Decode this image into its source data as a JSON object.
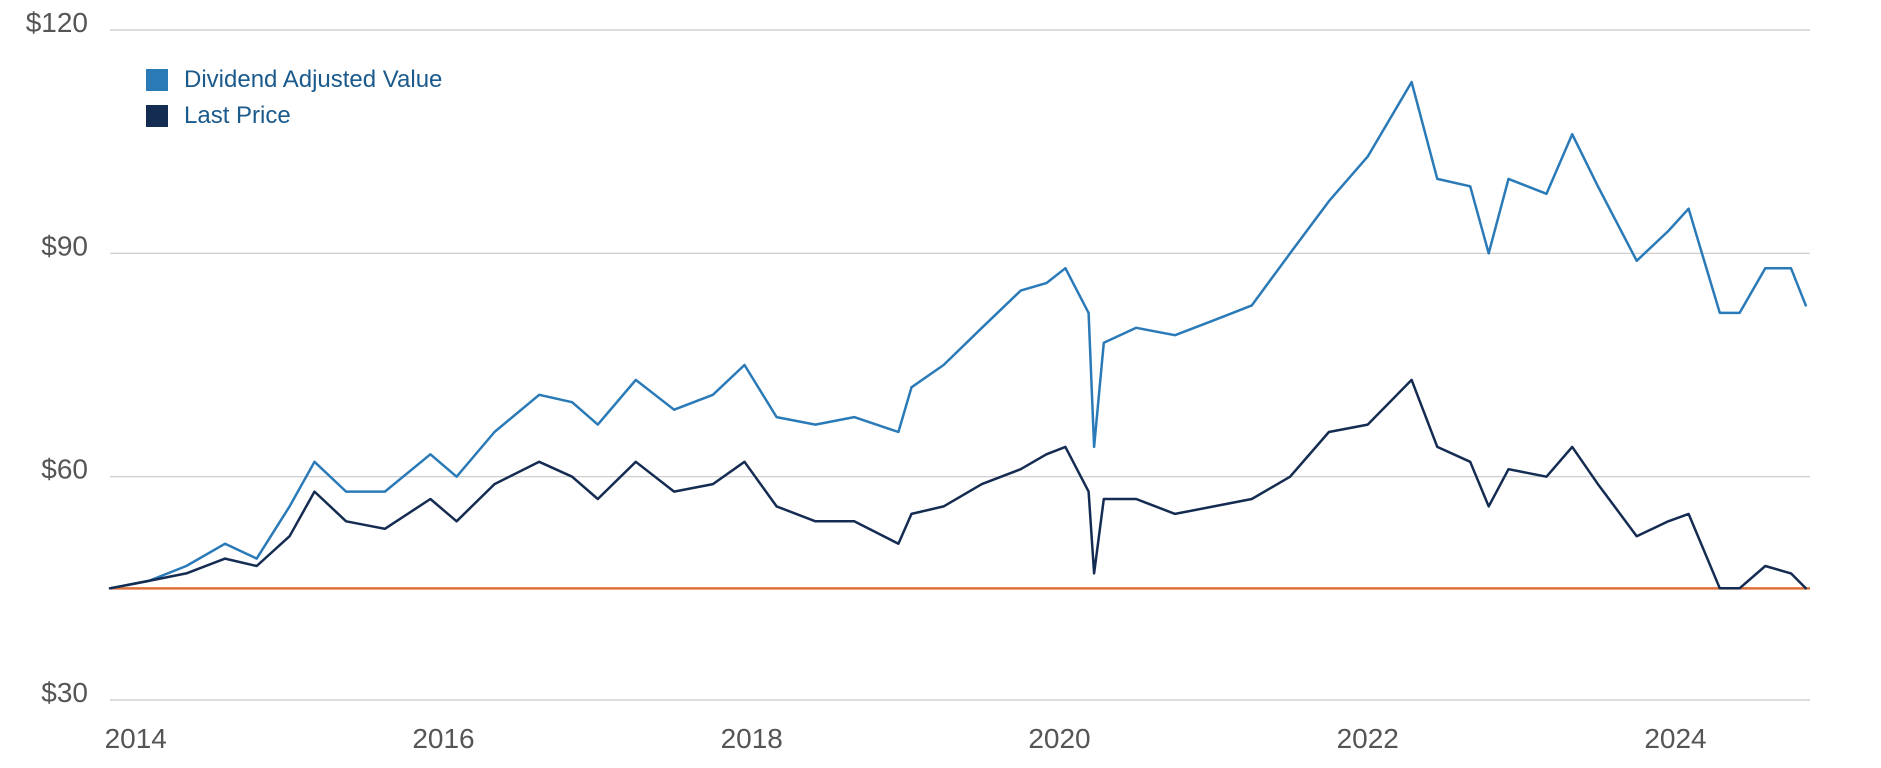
{
  "chart_data": {
    "type": "line",
    "title": "",
    "xlabel": "",
    "ylabel": "",
    "ylim": [
      30,
      120
    ],
    "xlim": [
      "2013-11-01",
      "2024-11-15"
    ],
    "y_ticks": [
      30,
      60,
      90,
      120
    ],
    "y_tick_labels": [
      "$30",
      "$60",
      "$90",
      "$120"
    ],
    "x_tick_values": [
      2014,
      2016,
      2018,
      2020,
      2022,
      2024
    ],
    "x_tick_labels": [
      "2014",
      "2016",
      "2018",
      "2020",
      "2022",
      "2024"
    ],
    "grid": true,
    "legend_position": "top-left",
    "legend": [
      "Dividend Adjusted Value",
      "Last Price"
    ],
    "colors": {
      "Dividend Adjusted Value": "#2a7ab8",
      "Last Price": "#152c52",
      "reference": "#e0703a"
    },
    "reference_line": {
      "value": 45
    },
    "series": [
      {
        "name": "Dividend Adjusted Value",
        "points": [
          [
            "2013-11-01",
            45
          ],
          [
            "2014-02-01",
            46
          ],
          [
            "2014-05-01",
            48
          ],
          [
            "2014-08-01",
            51
          ],
          [
            "2014-10-15",
            49
          ],
          [
            "2015-01-01",
            56
          ],
          [
            "2015-03-01",
            62
          ],
          [
            "2015-05-15",
            58
          ],
          [
            "2015-08-15",
            58
          ],
          [
            "2015-12-01",
            63
          ],
          [
            "2016-02-01",
            60
          ],
          [
            "2016-05-01",
            66
          ],
          [
            "2016-08-15",
            71
          ],
          [
            "2016-11-01",
            70
          ],
          [
            "2017-01-01",
            67
          ],
          [
            "2017-04-01",
            73
          ],
          [
            "2017-07-01",
            69
          ],
          [
            "2017-10-01",
            71
          ],
          [
            "2017-12-15",
            75
          ],
          [
            "2018-03-01",
            68
          ],
          [
            "2018-06-01",
            67
          ],
          [
            "2018-09-01",
            68
          ],
          [
            "2018-12-15",
            66
          ],
          [
            "2019-01-15",
            72
          ],
          [
            "2019-04-01",
            75
          ],
          [
            "2019-07-01",
            80
          ],
          [
            "2019-10-01",
            85
          ],
          [
            "2019-12-01",
            86
          ],
          [
            "2020-01-15",
            88
          ],
          [
            "2020-03-10",
            82
          ],
          [
            "2020-03-23",
            64
          ],
          [
            "2020-04-15",
            78
          ],
          [
            "2020-07-01",
            80
          ],
          [
            "2020-10-01",
            79
          ],
          [
            "2021-01-01",
            81
          ],
          [
            "2021-04-01",
            83
          ],
          [
            "2021-07-01",
            90
          ],
          [
            "2021-10-01",
            97
          ],
          [
            "2022-01-01",
            103
          ],
          [
            "2022-04-15",
            113
          ],
          [
            "2022-06-15",
            100
          ],
          [
            "2022-09-01",
            99
          ],
          [
            "2022-10-15",
            90
          ],
          [
            "2022-12-01",
            100
          ],
          [
            "2023-03-01",
            98
          ],
          [
            "2023-05-01",
            106
          ],
          [
            "2023-07-01",
            99
          ],
          [
            "2023-10-01",
            89
          ],
          [
            "2023-12-15",
            93
          ],
          [
            "2024-02-01",
            96
          ],
          [
            "2024-04-15",
            82
          ],
          [
            "2024-06-01",
            82
          ],
          [
            "2024-08-01",
            88
          ],
          [
            "2024-10-01",
            88
          ],
          [
            "2024-11-05",
            83
          ]
        ]
      },
      {
        "name": "Last Price",
        "points": [
          [
            "2013-11-01",
            45
          ],
          [
            "2014-02-01",
            46
          ],
          [
            "2014-05-01",
            47
          ],
          [
            "2014-08-01",
            49
          ],
          [
            "2014-10-15",
            48
          ],
          [
            "2015-01-01",
            52
          ],
          [
            "2015-03-01",
            58
          ],
          [
            "2015-05-15",
            54
          ],
          [
            "2015-08-15",
            53
          ],
          [
            "2015-12-01",
            57
          ],
          [
            "2016-02-01",
            54
          ],
          [
            "2016-05-01",
            59
          ],
          [
            "2016-08-15",
            62
          ],
          [
            "2016-11-01",
            60
          ],
          [
            "2017-01-01",
            57
          ],
          [
            "2017-04-01",
            62
          ],
          [
            "2017-07-01",
            58
          ],
          [
            "2017-10-01",
            59
          ],
          [
            "2017-12-15",
            62
          ],
          [
            "2018-03-01",
            56
          ],
          [
            "2018-06-01",
            54
          ],
          [
            "2018-09-01",
            54
          ],
          [
            "2018-12-15",
            51
          ],
          [
            "2019-01-15",
            55
          ],
          [
            "2019-04-01",
            56
          ],
          [
            "2019-07-01",
            59
          ],
          [
            "2019-10-01",
            61
          ],
          [
            "2019-12-01",
            63
          ],
          [
            "2020-01-15",
            64
          ],
          [
            "2020-03-10",
            58
          ],
          [
            "2020-03-23",
            47
          ],
          [
            "2020-04-15",
            57
          ],
          [
            "2020-07-01",
            57
          ],
          [
            "2020-10-01",
            55
          ],
          [
            "2021-01-01",
            56
          ],
          [
            "2021-04-01",
            57
          ],
          [
            "2021-07-01",
            60
          ],
          [
            "2021-10-01",
            66
          ],
          [
            "2022-01-01",
            67
          ],
          [
            "2022-04-15",
            73
          ],
          [
            "2022-06-15",
            64
          ],
          [
            "2022-09-01",
            62
          ],
          [
            "2022-10-15",
            56
          ],
          [
            "2022-12-01",
            61
          ],
          [
            "2023-03-01",
            60
          ],
          [
            "2023-05-01",
            64
          ],
          [
            "2023-07-01",
            59
          ],
          [
            "2023-10-01",
            52
          ],
          [
            "2023-12-15",
            54
          ],
          [
            "2024-02-01",
            55
          ],
          [
            "2024-04-15",
            45
          ],
          [
            "2024-06-01",
            45
          ],
          [
            "2024-08-01",
            48
          ],
          [
            "2024-10-01",
            47
          ],
          [
            "2024-11-05",
            45
          ]
        ]
      }
    ]
  }
}
